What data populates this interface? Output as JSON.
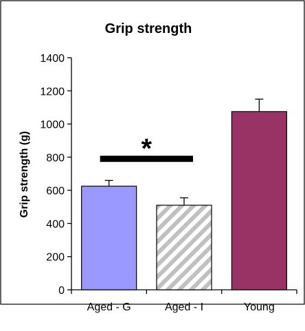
{
  "chart_data": {
    "type": "bar",
    "title": "Grip strength",
    "xlabel": "",
    "ylabel": "Grip strength (g)",
    "ylim": [
      0,
      1400
    ],
    "yticks": [
      0,
      200,
      400,
      600,
      800,
      1000,
      1200,
      1400
    ],
    "categories": [
      "Aged - G",
      "Aged - I",
      "Young"
    ],
    "values": [
      625,
      510,
      1075
    ],
    "errors": [
      35,
      45,
      75
    ],
    "bar_styles": [
      {
        "fill": "#9999ff",
        "pattern": "solid"
      },
      {
        "fill": "#c0c0c0",
        "pattern": "diagonal-hatch"
      },
      {
        "fill": "#993366",
        "pattern": "solid"
      }
    ],
    "annotation": {
      "text": "*",
      "between": [
        "Aged - G",
        "Aged - I"
      ],
      "line_level": 790
    },
    "grid": false,
    "legend": "none"
  }
}
